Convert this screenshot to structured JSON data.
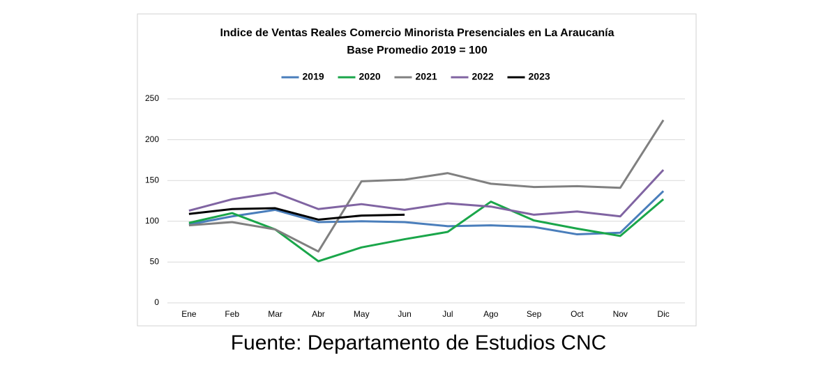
{
  "chart_data": {
    "type": "line",
    "title": "Indice de Ventas Reales Comercio Minorista Presenciales en La Araucanía",
    "subtitle": "Base Promedio 2019 = 100",
    "source": "Fuente: Departamento de Estudios CNC",
    "categories": [
      "Ene",
      "Feb",
      "Mar",
      "Abr",
      "May",
      "Jun",
      "Jul",
      "Ago",
      "Sep",
      "Oct",
      "Nov",
      "Dic"
    ],
    "series": [
      {
        "name": "2019",
        "color": "#4a7ebb",
        "values": [
          96,
          106,
          114,
          99,
          100,
          99,
          94,
          95,
          93,
          84,
          86,
          137
        ]
      },
      {
        "name": "2020",
        "color": "#1aa64a",
        "values": [
          98,
          110,
          90,
          51,
          68,
          78,
          87,
          124,
          101,
          91,
          82,
          127
        ]
      },
      {
        "name": "2021",
        "color": "#808080",
        "values": [
          95,
          99,
          90,
          63,
          149,
          151,
          159,
          146,
          142,
          143,
          141,
          224
        ]
      },
      {
        "name": "2022",
        "color": "#8064a2",
        "values": [
          113,
          127,
          135,
          115,
          121,
          114,
          122,
          118,
          108,
          112,
          106,
          163
        ]
      },
      {
        "name": "2023",
        "color": "#000000",
        "values": [
          109,
          115,
          116,
          102,
          107,
          108,
          null,
          null,
          null,
          null,
          null,
          null
        ]
      }
    ],
    "ylim": [
      0,
      250
    ],
    "yticks": [
      0,
      50,
      100,
      150,
      200,
      250
    ],
    "grid": true,
    "legend": "top"
  }
}
